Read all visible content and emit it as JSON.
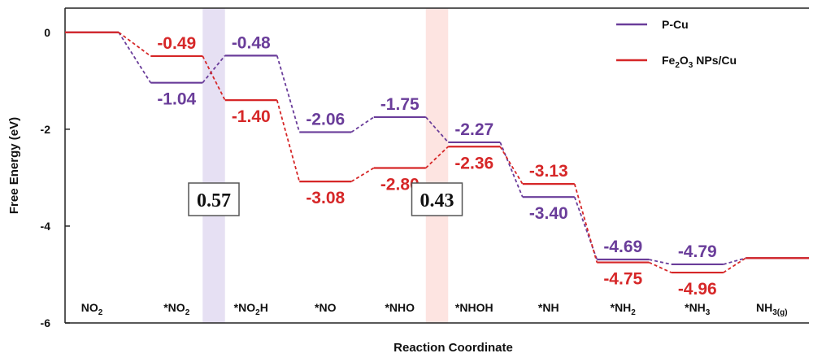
{
  "chart_data": {
    "type": "line",
    "ylabel": "Free Energy (eV)",
    "xlabel": "Reaction Coordinate",
    "ylim": [
      -6,
      0.5
    ],
    "yticks": [
      0,
      -2,
      -4,
      -6
    ],
    "categories": [
      {
        "base": "NO",
        "sub": "2",
        "tail": ""
      },
      {
        "base": "*NO",
        "sub": "2",
        "tail": ""
      },
      {
        "base": "*NO",
        "sub": "2",
        "tail": "H"
      },
      {
        "base": "*NO",
        "sub": "",
        "tail": ""
      },
      {
        "base": "*NHO",
        "sub": "",
        "tail": ""
      },
      {
        "base": "*NHOH",
        "sub": "",
        "tail": ""
      },
      {
        "base": "*NH",
        "sub": "",
        "tail": ""
      },
      {
        "base": "*NH",
        "sub": "2",
        "tail": ""
      },
      {
        "base": "*NH",
        "sub": "3",
        "tail": ""
      },
      {
        "base": "NH",
        "sub": "3(g)",
        "tail": ""
      }
    ],
    "series": [
      {
        "name": "P-Cu",
        "color": "#6a3d9a",
        "values": [
          0,
          -1.04,
          -0.48,
          -2.06,
          -1.75,
          -2.27,
          -3.4,
          -4.69,
          -4.79,
          -4.66
        ],
        "labels": [
          "",
          "-1.04",
          "-0.48",
          "-2.06",
          "-1.75",
          "-2.27",
          "-3.40",
          "-4.69",
          "-4.79",
          ""
        ]
      },
      {
        "name_parts": {
          "base": "Fe",
          "sub1": "2",
          "mid": "O",
          "sub2": "3",
          "tail": " NPs/Cu"
        },
        "color": "#d62728",
        "values": [
          0,
          -0.49,
          -1.4,
          -3.08,
          -2.8,
          -2.36,
          -3.13,
          -4.75,
          -4.96,
          -4.66
        ],
        "labels": [
          "",
          "-0.49",
          "-1.40",
          "-3.08",
          "-2.80",
          "-2.36",
          "-3.13",
          "-4.75",
          "-4.96",
          ""
        ]
      }
    ],
    "highlights": [
      {
        "from_step": 1,
        "to_step": 2,
        "color": "#e6e0f3",
        "label": "0.57"
      },
      {
        "from_step": 4,
        "to_step": 5,
        "color": "#fde4e1",
        "label": "0.43"
      }
    ],
    "legend_position": "top-right"
  }
}
